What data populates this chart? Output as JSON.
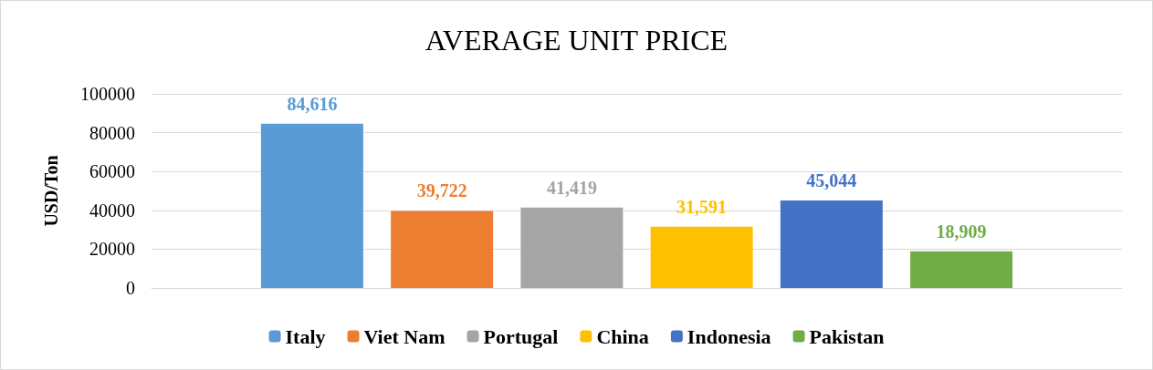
{
  "chart_data": {
    "type": "bar",
    "title": "AVERAGE UNIT PRICE",
    "ylabel": "USD/Ton",
    "categories": [
      null
    ],
    "series": [
      {
        "name": "Italy",
        "color": "#5b9bd5",
        "values": [
          84616
        ],
        "value_labels": [
          "84,616"
        ]
      },
      {
        "name": "Viet Nam",
        "color": "#ed7d31",
        "values": [
          39722
        ],
        "value_labels": [
          "39,722"
        ]
      },
      {
        "name": "Portugal",
        "color": "#a5a5a5",
        "values": [
          41419
        ],
        "value_labels": [
          "41,419"
        ]
      },
      {
        "name": "China",
        "color": "#ffc000",
        "values": [
          31591
        ],
        "value_labels": [
          "31,591"
        ]
      },
      {
        "name": "Indonesia",
        "color": "#4472c4",
        "values": [
          45044
        ],
        "value_labels": [
          "45,044"
        ]
      },
      {
        "name": "Pakistan",
        "color": "#70ad47",
        "values": [
          18909
        ],
        "value_labels": [
          "18,909"
        ]
      }
    ],
    "ylim": [
      0,
      100000
    ],
    "yticks": [
      0,
      20000,
      40000,
      60000,
      80000,
      100000
    ],
    "grid": "y",
    "legend": "bottom"
  }
}
